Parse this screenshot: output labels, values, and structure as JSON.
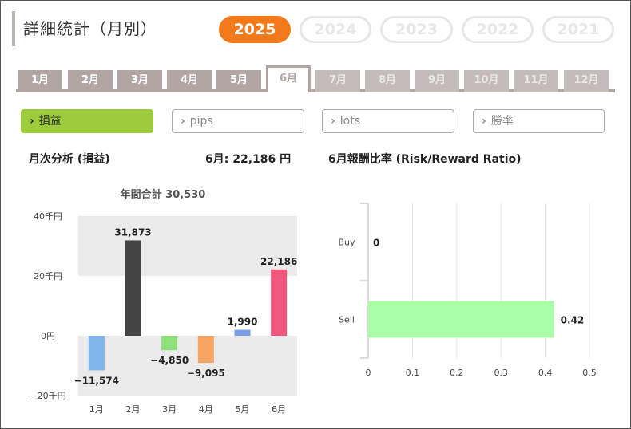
{
  "header": {
    "title": "詳細統計（月別）"
  },
  "years": [
    {
      "label": "2025",
      "active": true
    },
    {
      "label": "2024",
      "active": false
    },
    {
      "label": "2023",
      "active": false
    },
    {
      "label": "2022",
      "active": false
    },
    {
      "label": "2021",
      "active": false
    }
  ],
  "months": [
    "1月",
    "2月",
    "3月",
    "4月",
    "5月",
    "6月",
    "7月",
    "8月",
    "9月",
    "10月",
    "11月",
    "12月"
  ],
  "active_month_index": 5,
  "metrics": [
    {
      "label": "損益",
      "active": true
    },
    {
      "label": "pips",
      "active": false
    },
    {
      "label": "lots",
      "active": false
    },
    {
      "label": "勝率",
      "active": false
    }
  ],
  "left_panel": {
    "title": "月次分析 (損益)",
    "month_summary": "6月:  22,186 円",
    "annual_total": "年間合計 30,530"
  },
  "right_panel": {
    "title": "6月報酬比率 (Risk/Reward Ratio)"
  },
  "chart_data": [
    {
      "type": "bar",
      "categories": [
        "1月",
        "2月",
        "3月",
        "4月",
        "5月",
        "6月"
      ],
      "values": [
        -11574,
        31873,
        -4850,
        -9095,
        1990,
        22186
      ],
      "value_labels": [
        "−11,574",
        "31,873",
        "−4,850",
        "−9,095",
        "1,990",
        "22,186"
      ],
      "colors": [
        "#7fb5ea",
        "#444444",
        "#8ee07a",
        "#f5a464",
        "#7b9ee8",
        "#f0577a"
      ],
      "ylim": [
        -20000,
        40000
      ],
      "yticks": [
        40000,
        20000,
        0,
        -20000
      ],
      "ytick_labels": [
        "40千円",
        "20千円",
        "0円",
        "−20千円"
      ],
      "title": "年間合計 30,530"
    },
    {
      "type": "bar",
      "orientation": "horizontal",
      "categories": [
        "Buy",
        "Sell"
      ],
      "values": [
        0,
        0.42
      ],
      "value_labels": [
        "0",
        "0.42"
      ],
      "color": "#a8ffa8",
      "xlim": [
        0,
        0.5
      ],
      "xticks": [
        0,
        0.1,
        0.2,
        0.3,
        0.4,
        0.5
      ],
      "xtick_labels": [
        "0",
        "0.1",
        "0.2",
        "0.3",
        "0.4",
        "0.5"
      ]
    }
  ]
}
